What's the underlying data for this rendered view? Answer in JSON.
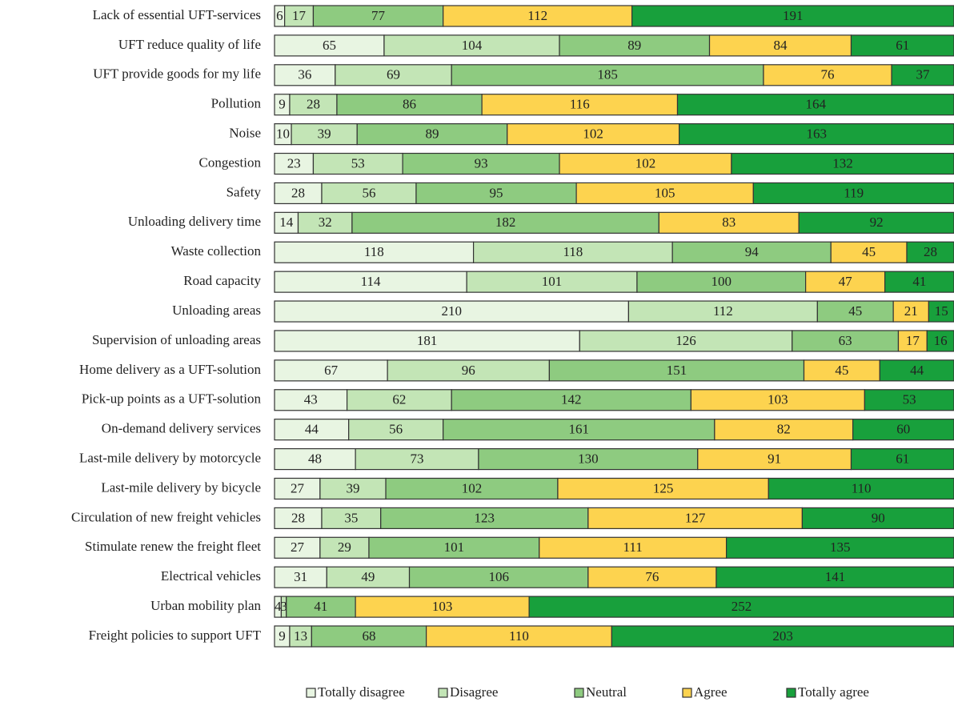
{
  "chart_data": {
    "type": "bar",
    "orientation": "horizontal",
    "stacked": true,
    "categories": [
      "Lack of essential UFT-services",
      "UFT reduce quality of life",
      "UFT provide goods for my life",
      "Pollution",
      "Noise",
      "Congestion",
      "Safety",
      "Unloading delivery time",
      "Waste collection",
      "Road capacity",
      "Unloading areas",
      "Supervision of unloading areas",
      "Home delivery as a UFT-solution",
      "Pick-up points as a UFT-solution",
      "On-demand delivery services",
      "Last-mile delivery by motorcycle",
      "Last-mile delivery by bicycle",
      "Circulation of new freight vehicles",
      "Stimulate renew the freight fleet ",
      "Electrical vehicles",
      "Urban mobility plan",
      "Freight policies to support UFT"
    ],
    "series": [
      {
        "name": "Totally disagree",
        "color": "#e8f5e2",
        "values": [
          6,
          65,
          36,
          9,
          10,
          23,
          28,
          14,
          118,
          114,
          210,
          181,
          67,
          43,
          44,
          48,
          27,
          28,
          27,
          31,
          4,
          9
        ]
      },
      {
        "name": "Disagree",
        "color": "#c3e5b6",
        "values": [
          17,
          104,
          69,
          28,
          39,
          53,
          56,
          32,
          118,
          101,
          112,
          126,
          96,
          62,
          56,
          73,
          39,
          35,
          29,
          49,
          3,
          13
        ]
      },
      {
        "name": "Neutral",
        "color": "#8ecb80",
        "values": [
          77,
          89,
          185,
          86,
          89,
          93,
          95,
          182,
          94,
          100,
          45,
          63,
          151,
          142,
          161,
          130,
          102,
          123,
          101,
          106,
          41,
          68
        ]
      },
      {
        "name": "Agree",
        "color": "#fdd34f",
        "values": [
          112,
          84,
          76,
          116,
          102,
          102,
          105,
          83,
          45,
          47,
          21,
          17,
          45,
          103,
          82,
          91,
          125,
          127,
          111,
          76,
          103,
          110
        ]
      },
      {
        "name": "Totally agree",
        "color": "#18a03c",
        "values": [
          191,
          61,
          37,
          164,
          163,
          132,
          119,
          92,
          28,
          41,
          15,
          16,
          44,
          53,
          60,
          61,
          110,
          90,
          135,
          141,
          252,
          203
        ]
      }
    ],
    "xlim": [
      0,
      403
    ]
  }
}
